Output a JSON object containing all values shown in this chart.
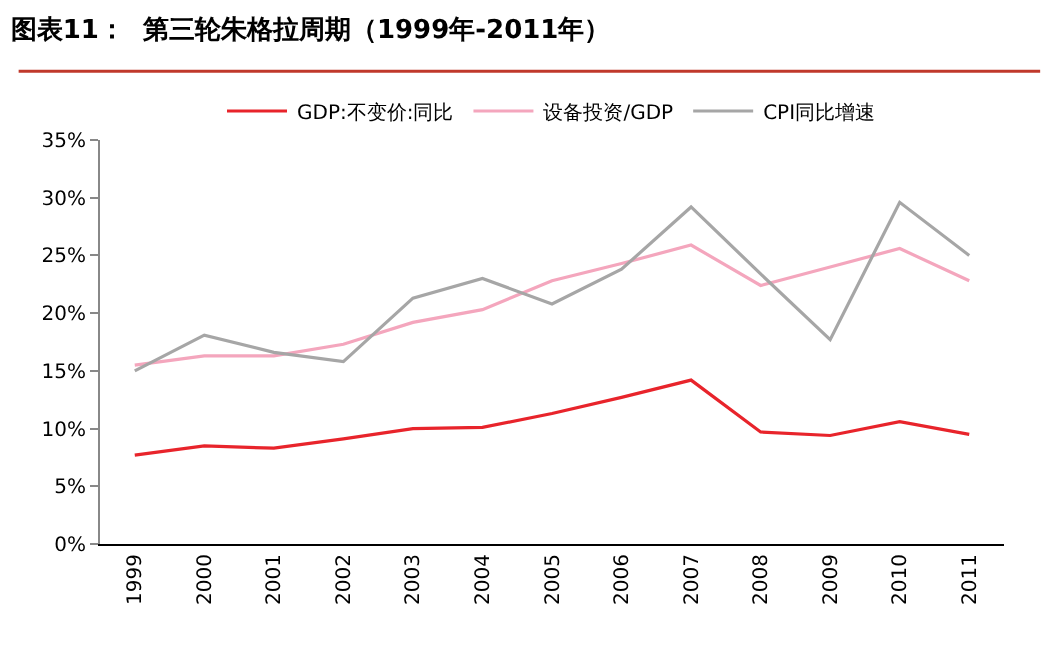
{
  "chart_data": {
    "type": "line",
    "title": "图表11：  第三轮朱格拉周期（1999年-2011年）",
    "categories": [
      "1999",
      "2000",
      "2001",
      "2002",
      "2003",
      "2004",
      "2005",
      "2006",
      "2007",
      "2008",
      "2009",
      "2010",
      "2011"
    ],
    "series": [
      {
        "name": "GDP:不变价:同比",
        "color": "#e8242b",
        "values": [
          7.7,
          8.5,
          8.3,
          9.1,
          10.0,
          10.1,
          11.3,
          12.7,
          14.2,
          9.7,
          9.4,
          10.6,
          9.5
        ]
      },
      {
        "name": "设备投资/GDP",
        "color": "#f4a6bd",
        "values": [
          15.5,
          16.3,
          16.3,
          17.3,
          19.2,
          20.3,
          22.8,
          24.3,
          25.9,
          22.4,
          24.0,
          25.6,
          22.8
        ]
      },
      {
        "name": "CPI同比增速",
        "color": "#a6a6a6",
        "values": [
          15.0,
          18.1,
          16.6,
          15.8,
          21.3,
          23.0,
          20.8,
          23.8,
          29.2,
          23.4,
          17.7,
          29.6,
          25.0
        ]
      }
    ],
    "ylim": [
      0,
      35
    ],
    "yticks": [
      {
        "value": 0,
        "label": "0%"
      },
      {
        "value": 5,
        "label": "5%"
      },
      {
        "value": 10,
        "label": "10%"
      },
      {
        "value": 15,
        "label": "15%"
      },
      {
        "value": 20,
        "label": "20%"
      },
      {
        "value": 25,
        "label": "25%"
      },
      {
        "value": 30,
        "label": "30%"
      },
      {
        "value": 35,
        "label": "35%"
      }
    ],
    "legend": "top",
    "marker": "none",
    "line_style": "solid"
  }
}
